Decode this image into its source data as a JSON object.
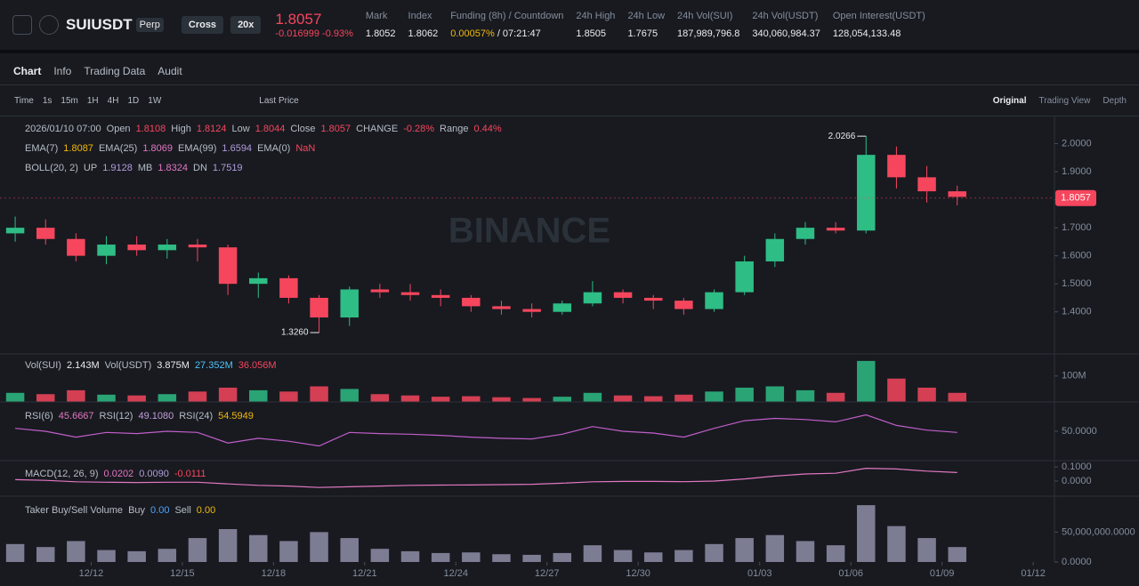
{
  "header": {
    "symbol": "SUIUSDT",
    "badge": "Perp",
    "margin": "Cross",
    "leverage": "20x",
    "price": "1.8057",
    "change": "-0.016999",
    "change_pct": "-0.93%",
    "stats": [
      {
        "label": "Mark",
        "value": "1.8052"
      },
      {
        "label": "Index",
        "value": "1.8062"
      },
      {
        "label": "Funding (8h) / Countdown",
        "value": "0.00057%",
        "value2": "/ 07:21:47"
      },
      {
        "label": "24h High",
        "value": "1.8505"
      },
      {
        "label": "24h Low",
        "value": "1.7675"
      },
      {
        "label": "24h Vol(SUI)",
        "value": "187,989,796.8"
      },
      {
        "label": "24h Vol(USDT)",
        "value": "340,060,984.37"
      },
      {
        "label": "Open Interest(USDT)",
        "value": "128,054,133.48"
      }
    ]
  },
  "tabs": [
    "Chart",
    "Info",
    "Trading Data",
    "Audit"
  ],
  "intervals": [
    "Time",
    "1s",
    "15m",
    "1H",
    "4H",
    "1D",
    "1W"
  ],
  "price_type": "Last Price",
  "views": [
    "Original",
    "Trading View",
    "Depth"
  ],
  "chart_data": [
    {
      "type": "candlestick",
      "x": [
        0.5,
        1.5,
        2.5,
        3.5,
        4.5,
        5.5,
        6.5,
        7.5,
        8.5,
        9.5,
        10.5,
        11.5,
        12.5,
        13.5,
        14.5,
        15.5,
        16.5,
        17.5,
        18.5,
        19.5,
        20.5,
        21.5,
        22.5,
        23.5,
        24.5,
        25.5,
        26.5,
        27.5,
        28.5,
        29.5,
        30.5,
        31.5
      ],
      "open": [
        1.68,
        1.7,
        1.66,
        1.6,
        1.64,
        1.62,
        1.64,
        1.63,
        1.5,
        1.52,
        1.45,
        1.38,
        1.48,
        1.47,
        1.46,
        1.45,
        1.42,
        1.41,
        1.4,
        1.43,
        1.47,
        1.45,
        1.44,
        1.41,
        1.47,
        1.58,
        1.66,
        1.7,
        1.69,
        1.96,
        1.88,
        1.83
      ],
      "high": [
        1.74,
        1.73,
        1.68,
        1.67,
        1.67,
        1.66,
        1.66,
        1.64,
        1.54,
        1.53,
        1.46,
        1.49,
        1.5,
        1.5,
        1.48,
        1.46,
        1.44,
        1.43,
        1.44,
        1.51,
        1.48,
        1.46,
        1.45,
        1.48,
        1.6,
        1.68,
        1.72,
        1.72,
        2.0266,
        1.99,
        1.92,
        1.85
      ],
      "low": [
        1.65,
        1.64,
        1.58,
        1.57,
        1.6,
        1.59,
        1.58,
        1.46,
        1.45,
        1.43,
        1.326,
        1.35,
        1.45,
        1.44,
        1.42,
        1.4,
        1.39,
        1.38,
        1.39,
        1.42,
        1.43,
        1.41,
        1.39,
        1.4,
        1.46,
        1.56,
        1.64,
        1.68,
        1.68,
        1.84,
        1.79,
        1.78
      ],
      "close": [
        1.7,
        1.66,
        1.6,
        1.64,
        1.62,
        1.64,
        1.63,
        1.5,
        1.52,
        1.45,
        1.38,
        1.48,
        1.47,
        1.46,
        1.45,
        1.42,
        1.41,
        1.4,
        1.43,
        1.47,
        1.45,
        1.44,
        1.41,
        1.47,
        1.58,
        1.66,
        1.7,
        1.69,
        1.96,
        1.88,
        1.83,
        1.81
      ],
      "up_color": "#2ebd85",
      "down_color": "#f6465d",
      "xlim": [
        0,
        34.7
      ],
      "xticks": [
        {
          "value": 3,
          "label": "12/12"
        },
        {
          "value": 6,
          "label": "12/15"
        },
        {
          "value": 9,
          "label": "12/18"
        },
        {
          "value": 12,
          "label": "12/21"
        },
        {
          "value": 15,
          "label": "12/24"
        },
        {
          "value": 18,
          "label": "12/27"
        },
        {
          "value": 21,
          "label": "12/30"
        },
        {
          "value": 25,
          "label": "01/03"
        },
        {
          "value": 28,
          "label": "01/06"
        },
        {
          "value": 31,
          "label": "01/09"
        },
        {
          "value": 34,
          "label": "01/12"
        }
      ],
      "ylim": [
        1.25,
        2.1
      ],
      "yticks": [
        {
          "value": 1.4,
          "label": "1.4000"
        },
        {
          "value": 1.5,
          "label": "1.5000"
        },
        {
          "value": 1.6,
          "label": "1.6000"
        },
        {
          "value": 1.7,
          "label": "1.7000"
        },
        {
          "value": 1.8,
          "label": "1.8000"
        },
        {
          "value": 1.9,
          "label": "1.9000"
        },
        {
          "value": 2,
          "label": "2.0000"
        }
      ],
      "high_marker": 2.0266,
      "low_marker": {
        "value": 1.326,
        "label": "1.3260"
      },
      "last_price": 1.8057,
      "watermark": "BINANCE",
      "legend": [
        [
          {
            "text": "2026/01/10 07:00"
          },
          {
            "text": "Open"
          },
          {
            "text": "1.8108",
            "color": "#f6465d"
          },
          {
            "text": "High"
          },
          {
            "text": "1.8124",
            "color": "#f6465d"
          },
          {
            "text": "Low"
          },
          {
            "text": "1.8044",
            "color": "#f6465d"
          },
          {
            "text": "Close"
          },
          {
            "text": "1.8057",
            "color": "#f6465d"
          },
          {
            "text": "CHANGE"
          },
          {
            "text": "-0.28%",
            "color": "#f6465d"
          },
          {
            "text": "Range"
          },
          {
            "text": "0.44%",
            "color": "#f6465d"
          }
        ],
        [
          {
            "text": "EMA(7)"
          },
          {
            "text": "1.8087",
            "color": "#f0b90b"
          },
          {
            "text": "EMA(25)"
          },
          {
            "text": "1.8069",
            "color": "#e377c2"
          },
          {
            "text": "EMA(99)"
          },
          {
            "text": "1.6594",
            "color": "#b39ddb"
          },
          {
            "text": "EMA(0)"
          },
          {
            "text": "NaN",
            "color": "#f6465d"
          }
        ],
        [
          {
            "text": "BOLL(20, 2)"
          },
          {
            "text": "UP"
          },
          {
            "text": "1.9128",
            "color": "#b39ddb"
          },
          {
            "text": "MB"
          },
          {
            "text": "1.8324",
            "color": "#e377c2"
          },
          {
            "text": "DN"
          },
          {
            "text": "1.7519",
            "color": "#b39ddb"
          }
        ]
      ]
    },
    {
      "type": "bar",
      "values": [
        35000000,
        30000000,
        45000000,
        28000000,
        25000000,
        30000000,
        40000000,
        55000000,
        45000000,
        40000000,
        60000000,
        50000000,
        30000000,
        25000000,
        20000000,
        22000000,
        18000000,
        15000000,
        20000000,
        35000000,
        25000000,
        22000000,
        28000000,
        40000000,
        55000000,
        60000000,
        45000000,
        35000000,
        158000000,
        90000000,
        55000000,
        35000000
      ],
      "ylim": [
        0,
        185000000
      ],
      "yticks": [
        {
          "value": 100000000,
          "label": "100M"
        }
      ],
      "legend": [
        [
          {
            "text": "Vol(SUI)"
          },
          {
            "text": "2.143M",
            "color": "#eaecef"
          },
          {
            "text": "Vol(USDT)"
          },
          {
            "text": "3.875M",
            "color": "#eaecef"
          },
          {
            "text": "27.352M",
            "color": "#4fc3f7"
          },
          {
            "text": "36.056M",
            "color": "#f6465d"
          }
        ]
      ]
    },
    {
      "type": "line",
      "values": [
        55,
        50,
        40,
        48,
        46,
        50,
        48,
        30,
        38,
        33,
        25,
        48,
        46,
        45,
        43,
        40,
        38,
        37,
        45,
        58,
        50,
        47,
        40,
        55,
        68,
        72,
        70,
        66,
        78,
        60,
        52,
        48
      ],
      "color": "#c15ec9",
      "ylim": [
        0,
        100
      ],
      "yticks": [
        {
          "value": 50,
          "label": "50.0000"
        }
      ],
      "legend": [
        [
          {
            "text": "RSI(6)"
          },
          {
            "text": "45.6667",
            "color": "#e377c2"
          },
          {
            "text": "RSI(12)"
          },
          {
            "text": "49.1080",
            "color": "#c39ddb"
          },
          {
            "text": "RSI(24)"
          },
          {
            "text": "54.5949",
            "color": "#f0b90b"
          }
        ]
      ]
    },
    {
      "type": "line",
      "values": [
        0.01,
        0.005,
        -0.005,
        -0.008,
        -0.01,
        -0.008,
        -0.008,
        -0.02,
        -0.03,
        -0.035,
        -0.045,
        -0.04,
        -0.035,
        -0.03,
        -0.028,
        -0.027,
        -0.025,
        -0.022,
        -0.015,
        -0.005,
        -0.002,
        -0.002,
        -0.004,
        0,
        0.015,
        0.035,
        0.05,
        0.055,
        0.09,
        0.085,
        0.07,
        0.06
      ],
      "color": "#e377c2",
      "ylim": [
        -0.106,
        0.144
      ],
      "yticks": [
        {
          "value": 0.1,
          "label": "0.1000"
        },
        {
          "value": 0,
          "label": "0.0000"
        }
      ],
      "legend": [
        [
          {
            "text": "MACD(12, 26, 9)"
          },
          {
            "text": "0.0202",
            "color": "#e377c2"
          },
          {
            "text": "0.0090",
            "color": "#b39ddb"
          },
          {
            "text": "-0.0111",
            "color": "#f6465d"
          }
        ]
      ]
    },
    {
      "type": "bar",
      "values": [
        30000000,
        25000000,
        35000000,
        20000000,
        18000000,
        22000000,
        40000000,
        55000000,
        45000000,
        35000000,
        50000000,
        40000000,
        22000000,
        18000000,
        15000000,
        16000000,
        13000000,
        12000000,
        15000000,
        28000000,
        20000000,
        16000000,
        20000000,
        30000000,
        40000000,
        45000000,
        35000000,
        28000000,
        95000000,
        60000000,
        40000000,
        25000000
      ],
      "color": "#8e8ea8",
      "ylim": [
        0,
        110000000
      ],
      "yticks": [
        {
          "value": 50000000,
          "label": "50,000,000.0000"
        },
        {
          "value": 0,
          "label": "0.0000"
        }
      ],
      "legend": [
        [
          {
            "text": "Taker Buy/Sell Volume"
          },
          {
            "text": "Buy"
          },
          {
            "text": "0.00",
            "color": "#4fa3f7"
          },
          {
            "text": "Sell"
          },
          {
            "text": "0.00",
            "color": "#f0b90b"
          }
        ]
      ]
    }
  ]
}
